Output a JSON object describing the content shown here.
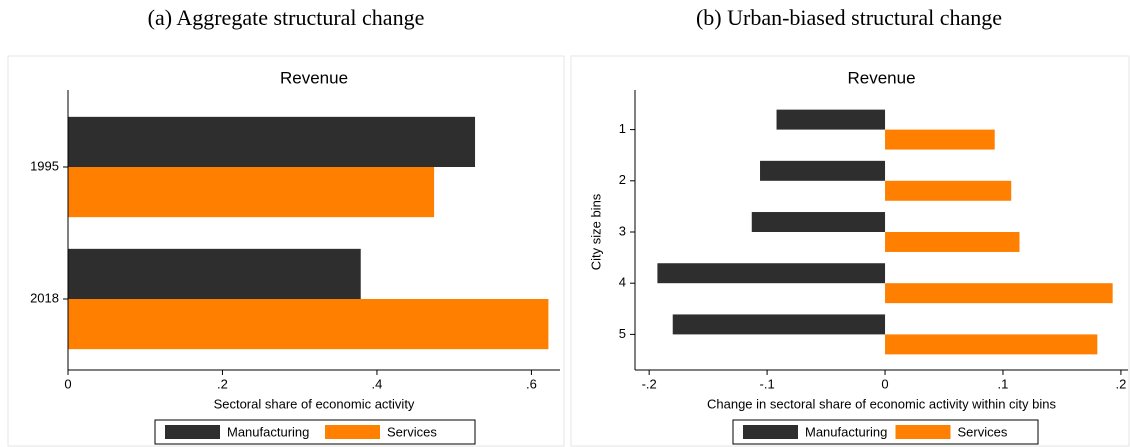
{
  "chart_data": [
    {
      "type": "hbar",
      "title": "(a) Aggregate structural change",
      "subtitle": "Revenue",
      "categories": [
        "1995",
        "2018"
      ],
      "series": [
        {
          "name": "Manufacturing",
          "color": "#2e2e2e",
          "values": [
            0.527,
            0.379
          ]
        },
        {
          "name": "Services",
          "color": "#ff8000",
          "values": [
            0.474,
            0.622
          ]
        }
      ],
      "x_label": "Sectoral share of economic activity",
      "xlim": [
        0,
        0.637
      ],
      "xticks": [
        0,
        {
          "value": 0.2,
          "label": ".2"
        },
        {
          "value": 0.4,
          "label": ".4"
        },
        {
          "value": 0.6,
          "label": ".6"
        }
      ],
      "legend": "bottom"
    },
    {
      "type": "hbar",
      "title": "(b) Urban-biased structural change",
      "subtitle": "Revenue",
      "categories": [
        "1",
        "2",
        "3",
        "4",
        "5"
      ],
      "series": [
        {
          "name": "Manufacturing",
          "color": "#2e2e2e",
          "values": [
            -0.092,
            -0.106,
            -0.113,
            -0.193,
            -0.18
          ]
        },
        {
          "name": "Services",
          "color": "#ff8000",
          "values": [
            0.093,
            0.107,
            0.114,
            0.193,
            0.18
          ]
        }
      ],
      "x_label": "Change in sectoral share of economic activity within city bins",
      "y_label": "City size bins",
      "xlim": [
        -0.212,
        0.206
      ],
      "xticks": [
        {
          "value": -0.2,
          "label": "-.2"
        },
        {
          "value": -0.1,
          "label": "-.1"
        },
        0,
        {
          "value": 0.1,
          "label": ".1"
        },
        {
          "value": 0.2,
          "label": ".2"
        }
      ],
      "legend": "bottom"
    }
  ]
}
